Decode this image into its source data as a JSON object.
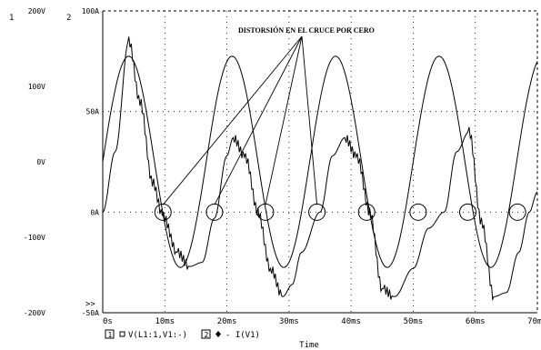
{
  "chart_data": {
    "type": "line",
    "annotation": "DISTORSIÓN EN EL CRUCE POR CERO",
    "xlabel": "Time",
    "xlim": [
      0,
      70
    ],
    "x_tick_labels": [
      "0s",
      "10ms",
      "20ms",
      "30ms",
      "40ms",
      "50ms",
      "60ms",
      "70ms"
    ],
    "axis_ids": [
      "1",
      "2"
    ],
    "left_axis": {
      "id": "1",
      "range": [
        -200,
        200
      ],
      "unit": "V",
      "tick_labels": [
        "200V",
        "100V",
        "0V",
        "-100V",
        "-200V"
      ]
    },
    "right_axis": {
      "id": "2",
      "range": [
        -50,
        100
      ],
      "unit": "A",
      "tick_labels": [
        "100A",
        "50A",
        "0A",
        "-50A"
      ]
    },
    "grid": true,
    "series": [
      {
        "name": "V(L1:1,V1:-)",
        "axis": "1",
        "marker": "square",
        "amplitude": 140,
        "frequency_hz": 60,
        "x": [
          0,
          2.08,
          4.17,
          6.25,
          8.33,
          10.42,
          12.5,
          14.58,
          16.67,
          18.75,
          20.83,
          22.92,
          25,
          27.08,
          29.17,
          31.25,
          33.33,
          35.42,
          37.5,
          39.58,
          41.67,
          43.75,
          45.83,
          47.92,
          50,
          52.08,
          54.17,
          56.25,
          58.33,
          60.42,
          62.5,
          64.58,
          66.67,
          68.75,
          70
        ],
        "y": [
          0,
          99,
          140,
          99,
          0,
          -99,
          -140,
          -99,
          0,
          99,
          140,
          99,
          0,
          -99,
          -140,
          -99,
          0,
          99,
          140,
          99,
          0,
          -99,
          -140,
          -99,
          0,
          99,
          140,
          99,
          0,
          -99,
          -140,
          -99,
          0,
          99,
          121
        ]
      },
      {
        "name": "- I(V1)",
        "axis": "2",
        "marker": "diamond",
        "x": [
          0,
          2,
          4.2,
          6,
          8,
          9.7,
          12,
          14,
          16,
          18,
          20,
          21,
          23,
          25,
          27,
          29,
          30.5,
          32,
          35,
          37,
          39,
          41,
          43,
          45,
          47,
          50,
          52.5,
          55,
          57,
          59,
          61,
          63,
          65,
          67,
          68.7,
          70
        ],
        "y": [
          0,
          30,
          85,
          55,
          15,
          -2,
          -20,
          -27,
          -25,
          -3,
          28,
          37,
          27,
          0,
          -28,
          -42,
          -36,
          -20,
          0,
          28,
          37,
          27,
          0,
          -38,
          -42,
          -28,
          -8,
          0,
          30,
          40,
          -5,
          -42,
          -40,
          -20,
          0,
          10
        ]
      }
    ],
    "zero_crossing_markers_ms": [
      9.7,
      18,
      26.2,
      34.5,
      42.5,
      50.8,
      58.8,
      66.8
    ]
  }
}
